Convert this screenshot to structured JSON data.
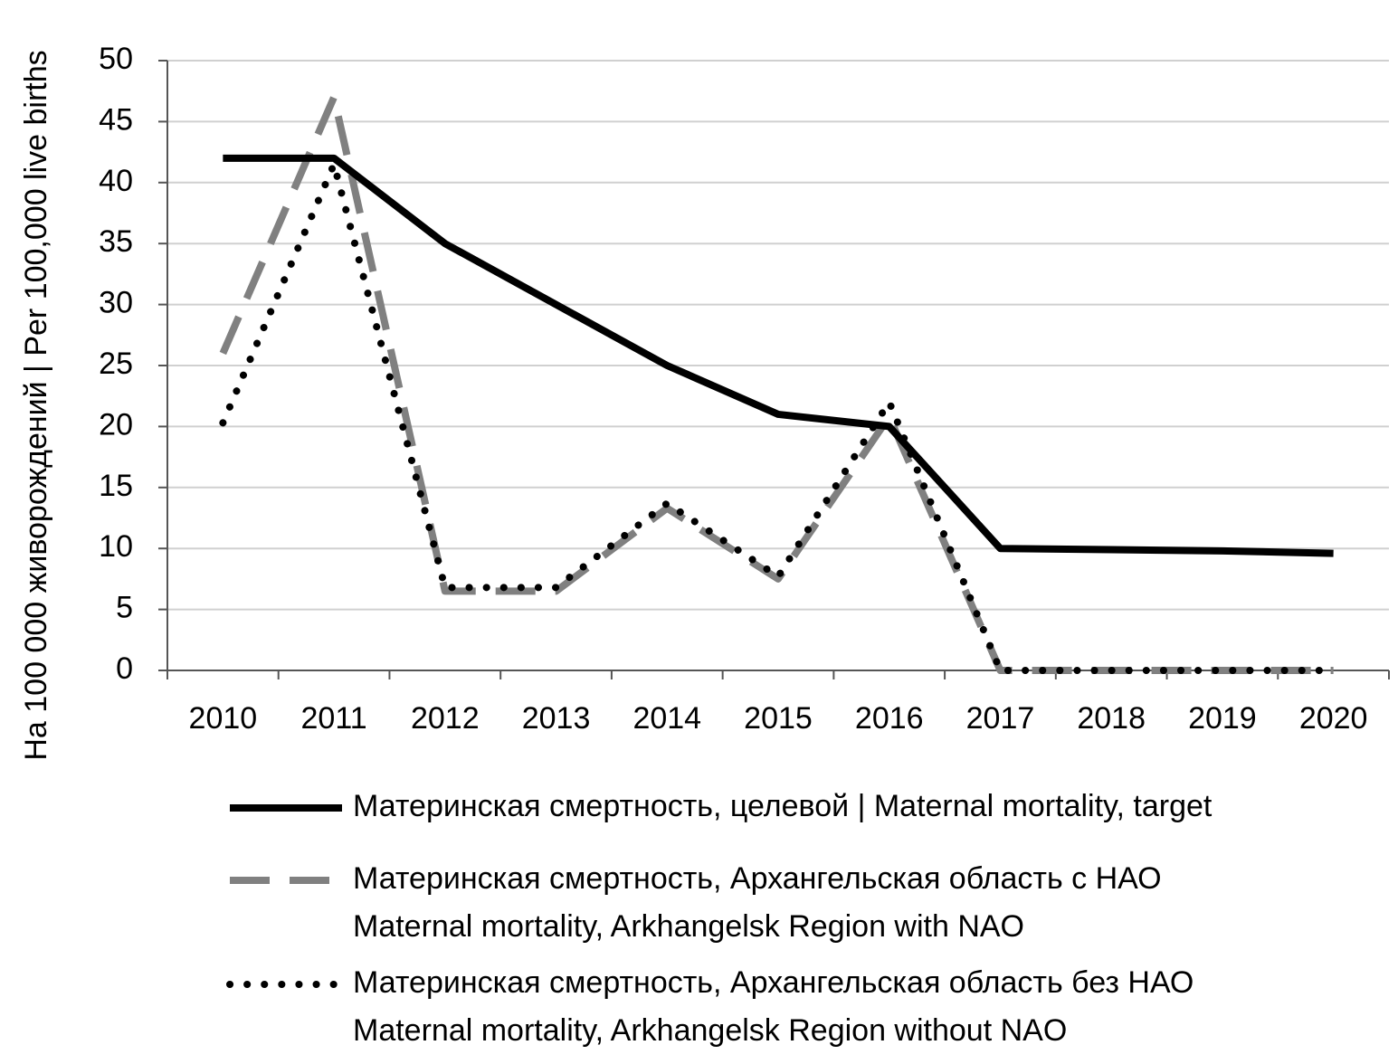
{
  "chart_data": {
    "type": "line",
    "y_label": "На 100 000 живорождений | Per 100,000 live births",
    "categories": [
      "2010",
      "2011",
      "2012",
      "2013",
      "2014",
      "2015",
      "2016",
      "2017",
      "2018",
      "2019",
      "2020"
    ],
    "series": [
      {
        "name": "Материнская смертность, целевой | Maternal mortality, target",
        "color": "#000000",
        "style": "solid",
        "values": [
          42,
          42,
          35,
          30,
          25,
          21,
          20,
          10,
          9.9,
          9.8,
          9.6
        ]
      },
      {
        "name": "Материнская смертность, Архангельская область с НАО\nMaternal mortality, Arkhangelsk Region with NAO",
        "color": "#808080",
        "style": "dashed",
        "values": [
          26,
          47,
          6.5,
          6.5,
          13.3,
          7.5,
          20.8,
          0,
          0,
          0,
          0
        ]
      },
      {
        "name": "Материнская смертность, Архангельская область без НАО\nMaternal mortality, Arkhangelsk Region without NAO",
        "color": "#000000",
        "style": "dotted",
        "values": [
          20.3,
          41.5,
          6.8,
          6.8,
          13.7,
          7.7,
          22,
          0,
          0,
          0,
          0
        ]
      }
    ],
    "ylim": [
      0,
      50
    ],
    "yticks": [
      0,
      5,
      10,
      15,
      20,
      25,
      30,
      35,
      40,
      45,
      50
    ],
    "grid": true
  }
}
